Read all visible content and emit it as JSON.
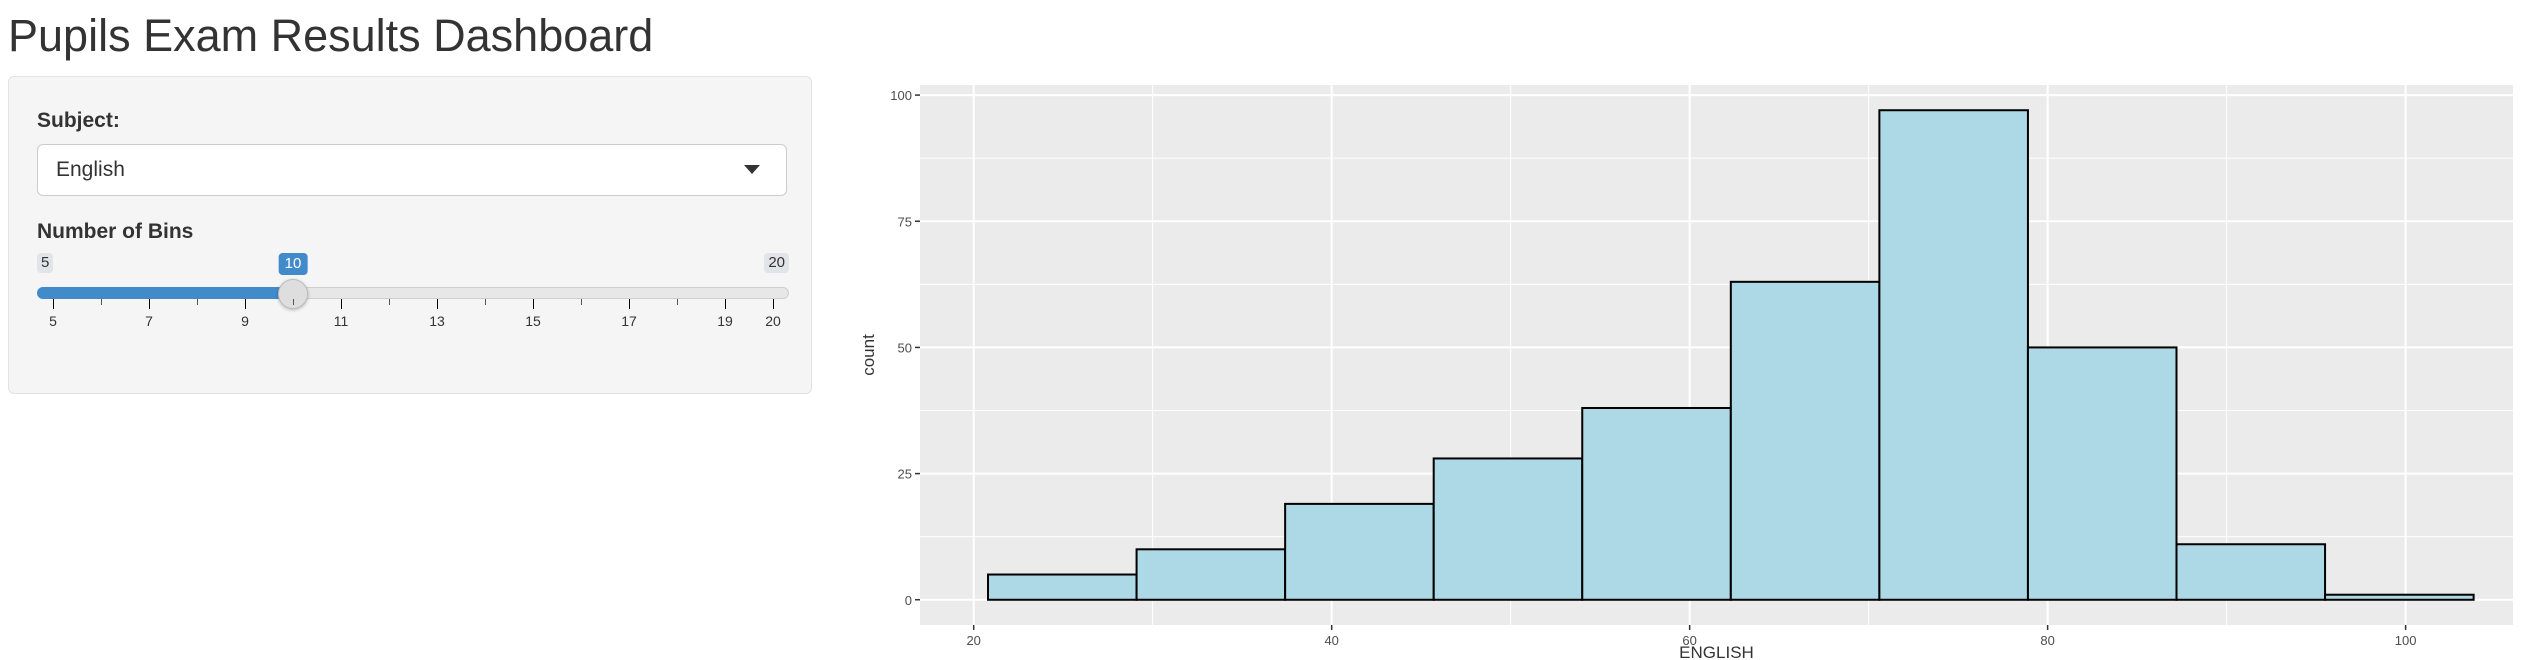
{
  "page": {
    "title": "Pupils Exam Results Dashboard"
  },
  "sidebar": {
    "subject": {
      "label": "Subject:",
      "value": "English"
    },
    "bins": {
      "label": "Number of Bins",
      "min": 5,
      "max": 20,
      "value": 10,
      "min_label": "5",
      "max_label": "20",
      "value_label": "10",
      "grid_labels": [
        "5",
        "7",
        "9",
        "11",
        "13",
        "15",
        "17",
        "19",
        "20"
      ],
      "accent_color": "#428bca"
    }
  },
  "chart_data": {
    "type": "bar",
    "title": "",
    "xlabel": "ENGLISH",
    "ylabel": "count",
    "xlim": [
      17,
      106
    ],
    "ylim": [
      -5,
      102
    ],
    "x_ticks": [
      20,
      40,
      60,
      80,
      100
    ],
    "y_ticks": [
      0,
      25,
      50,
      75,
      100
    ],
    "grid": true,
    "panel_color": "#ebebeb",
    "bar_fill": "#add8e6",
    "bar_outline": "#000000",
    "bins": [
      {
        "x0": 20.8,
        "x1": 29.1,
        "count": 5
      },
      {
        "x0": 29.1,
        "x1": 37.4,
        "count": 10
      },
      {
        "x0": 37.4,
        "x1": 45.7,
        "count": 19
      },
      {
        "x0": 45.7,
        "x1": 54.0,
        "count": 28
      },
      {
        "x0": 54.0,
        "x1": 62.3,
        "count": 38
      },
      {
        "x0": 62.3,
        "x1": 70.6,
        "count": 63
      },
      {
        "x0": 70.6,
        "x1": 78.9,
        "count": 97
      },
      {
        "x0": 78.9,
        "x1": 87.2,
        "count": 50
      },
      {
        "x0": 87.2,
        "x1": 95.5,
        "count": 11
      },
      {
        "x0": 95.5,
        "x1": 103.8,
        "count": 1
      }
    ]
  }
}
